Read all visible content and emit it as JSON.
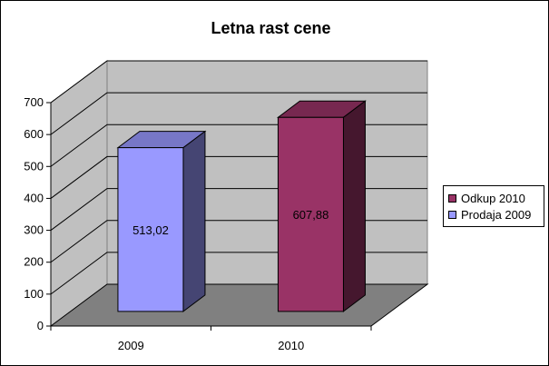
{
  "chart_data": {
    "type": "bar",
    "title": "Letna rast cene",
    "categories": [
      "2009",
      "2010"
    ],
    "values": [
      513.02,
      607.88
    ],
    "data_labels": [
      "513,02",
      "607,88"
    ],
    "bar_colors": [
      "#9999ff",
      "#993366"
    ],
    "yticks": [
      "0",
      "100",
      "200",
      "300",
      "400",
      "500",
      "600",
      "700"
    ],
    "ylim": [
      0,
      700
    ],
    "grid": true,
    "legend_position": "right",
    "legend": [
      {
        "label": "Odkup 2010",
        "color": "#993366"
      },
      {
        "label": "Prodaja 2009",
        "color": "#9999ff"
      }
    ],
    "xlabel": "",
    "ylabel": ""
  }
}
